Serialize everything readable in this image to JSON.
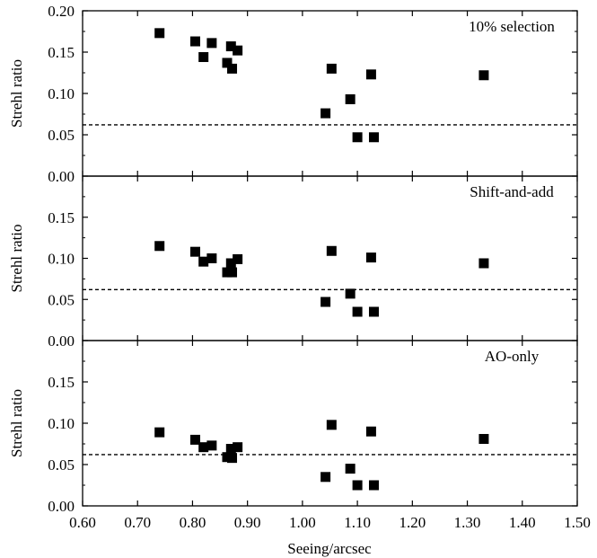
{
  "chart_data": {
    "type": "scatter",
    "xlabel": "Seeing/arcsec",
    "xlim": [
      0.6,
      1.5
    ],
    "xticks": [
      "0.60",
      "0.70",
      "0.80",
      "0.90",
      "1.00",
      "1.10",
      "1.20",
      "1.30",
      "1.40",
      "1.50"
    ],
    "ylabel": "Strehl ratio",
    "x": [
      0.74,
      0.805,
      0.82,
      0.835,
      0.863,
      0.87,
      0.872,
      0.882,
      1.042,
      1.053,
      1.087,
      1.1,
      1.125,
      1.13,
      1.33
    ],
    "panels": [
      {
        "label": "10% selection",
        "ylim": [
          0.0,
          0.2
        ],
        "yticks": [
          "0.00",
          "0.05",
          "0.10",
          "0.15",
          "0.20"
        ],
        "threshold": 0.062,
        "y": [
          0.173,
          0.163,
          0.144,
          0.161,
          0.137,
          0.157,
          0.13,
          0.152,
          0.076,
          0.13,
          0.093,
          0.047,
          0.123,
          0.047,
          0.122
        ]
      },
      {
        "label": "Shift-and-add",
        "ylim": [
          0.0,
          0.2
        ],
        "yticks": [
          "0.00",
          "0.05",
          "0.10",
          "0.15"
        ],
        "threshold": 0.062,
        "y": [
          0.115,
          0.108,
          0.096,
          0.1,
          0.083,
          0.094,
          0.083,
          0.099,
          0.047,
          0.109,
          0.057,
          0.035,
          0.101,
          0.035,
          0.094
        ]
      },
      {
        "label": "AO-only",
        "ylim": [
          0.0,
          0.2
        ],
        "yticks": [
          "0.00",
          "0.05",
          "0.10",
          "0.15"
        ],
        "threshold": 0.062,
        "y": [
          0.089,
          0.08,
          0.071,
          0.073,
          0.059,
          0.069,
          0.058,
          0.071,
          0.035,
          0.098,
          0.045,
          0.025,
          0.09,
          0.025,
          0.081
        ]
      }
    ],
    "marker_color": "#000000"
  }
}
